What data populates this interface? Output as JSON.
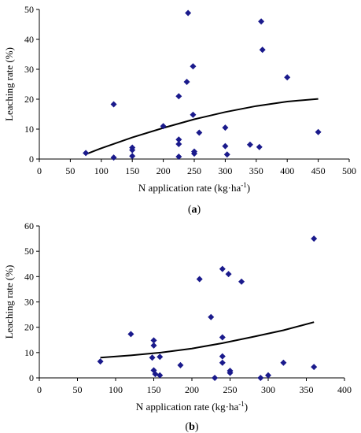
{
  "chart_data": [
    {
      "type": "scatter",
      "panel_label": "(a)",
      "xlabel": "N application rate (kg·ha",
      "xlabel_sup": "-1",
      "xlabel_end": ")",
      "ylabel": "Leaching rate (%)",
      "xlim": [
        0,
        500
      ],
      "ylim": [
        0,
        50
      ],
      "xticks": [
        "0",
        "50",
        "100",
        "150",
        "200",
        "250",
        "300",
        "350",
        "400",
        "450",
        "500"
      ],
      "yticks": [
        "0",
        "10",
        "20",
        "30",
        "40",
        "50"
      ],
      "grid": false,
      "marker_color": "#1a1a8c",
      "trend_color": "#000000",
      "points": [
        {
          "x": 75,
          "y": 2
        },
        {
          "x": 120,
          "y": 0.5
        },
        {
          "x": 120,
          "y": 18.3
        },
        {
          "x": 150,
          "y": 3.8
        },
        {
          "x": 150,
          "y": 3
        },
        {
          "x": 150,
          "y": 1
        },
        {
          "x": 200,
          "y": 11
        },
        {
          "x": 225,
          "y": 21
        },
        {
          "x": 225,
          "y": 6.5
        },
        {
          "x": 225,
          "y": 5
        },
        {
          "x": 225,
          "y": 0.8
        },
        {
          "x": 238,
          "y": 25.8
        },
        {
          "x": 240,
          "y": 48.8
        },
        {
          "x": 248,
          "y": 31
        },
        {
          "x": 248,
          "y": 14.8
        },
        {
          "x": 250,
          "y": 2.5
        },
        {
          "x": 250,
          "y": 1.8
        },
        {
          "x": 258,
          "y": 8.8
        },
        {
          "x": 300,
          "y": 10.5
        },
        {
          "x": 300,
          "y": 4.3
        },
        {
          "x": 303,
          "y": 1.5
        },
        {
          "x": 340,
          "y": 4.8
        },
        {
          "x": 355,
          "y": 4
        },
        {
          "x": 358,
          "y": 46
        },
        {
          "x": 360,
          "y": 36.5
        },
        {
          "x": 400,
          "y": 27.3
        },
        {
          "x": 450,
          "y": 9
        }
      ],
      "trendline": [
        {
          "x": 75,
          "y": 1.6
        },
        {
          "x": 100,
          "y": 3.6
        },
        {
          "x": 150,
          "y": 7.2
        },
        {
          "x": 200,
          "y": 10.4
        },
        {
          "x": 250,
          "y": 13.3
        },
        {
          "x": 300,
          "y": 15.7
        },
        {
          "x": 350,
          "y": 17.7
        },
        {
          "x": 400,
          "y": 19.2
        },
        {
          "x": 450,
          "y": 20.1
        }
      ]
    },
    {
      "type": "scatter",
      "panel_label": "(b)",
      "xlabel": "N application rate (kg·ha",
      "xlabel_sup": "-1",
      "xlabel_end": ")",
      "ylabel": "Leaching rate (%)",
      "xlim": [
        0,
        400
      ],
      "ylim": [
        0,
        60
      ],
      "xticks": [
        "0",
        "50",
        "100",
        "150",
        "200",
        "250",
        "300",
        "350",
        "400"
      ],
      "yticks": [
        "0",
        "10",
        "20",
        "30",
        "40",
        "50",
        "60"
      ],
      "grid": false,
      "marker_color": "#1a1a8c",
      "trend_color": "#000000",
      "points": [
        {
          "x": 80,
          "y": 6.5
        },
        {
          "x": 120,
          "y": 17.3
        },
        {
          "x": 148,
          "y": 8
        },
        {
          "x": 150,
          "y": 14.8
        },
        {
          "x": 150,
          "y": 12.8
        },
        {
          "x": 150,
          "y": 3
        },
        {
          "x": 152,
          "y": 1.5
        },
        {
          "x": 158,
          "y": 1
        },
        {
          "x": 158,
          "y": 8.3
        },
        {
          "x": 185,
          "y": 5
        },
        {
          "x": 210,
          "y": 39
        },
        {
          "x": 225,
          "y": 24
        },
        {
          "x": 230,
          "y": 0
        },
        {
          "x": 240,
          "y": 43
        },
        {
          "x": 240,
          "y": 16
        },
        {
          "x": 240,
          "y": 8.5
        },
        {
          "x": 240,
          "y": 6
        },
        {
          "x": 248,
          "y": 41
        },
        {
          "x": 250,
          "y": 2.8
        },
        {
          "x": 250,
          "y": 2
        },
        {
          "x": 265,
          "y": 38
        },
        {
          "x": 290,
          "y": 0
        },
        {
          "x": 300,
          "y": 1
        },
        {
          "x": 320,
          "y": 6
        },
        {
          "x": 360,
          "y": 55
        },
        {
          "x": 360,
          "y": 4.3
        }
      ],
      "trendline": [
        {
          "x": 80,
          "y": 8
        },
        {
          "x": 120,
          "y": 8.9
        },
        {
          "x": 160,
          "y": 10
        },
        {
          "x": 200,
          "y": 11.6
        },
        {
          "x": 240,
          "y": 13.7
        },
        {
          "x": 280,
          "y": 16.2
        },
        {
          "x": 320,
          "y": 18.8
        },
        {
          "x": 360,
          "y": 22
        }
      ]
    }
  ]
}
